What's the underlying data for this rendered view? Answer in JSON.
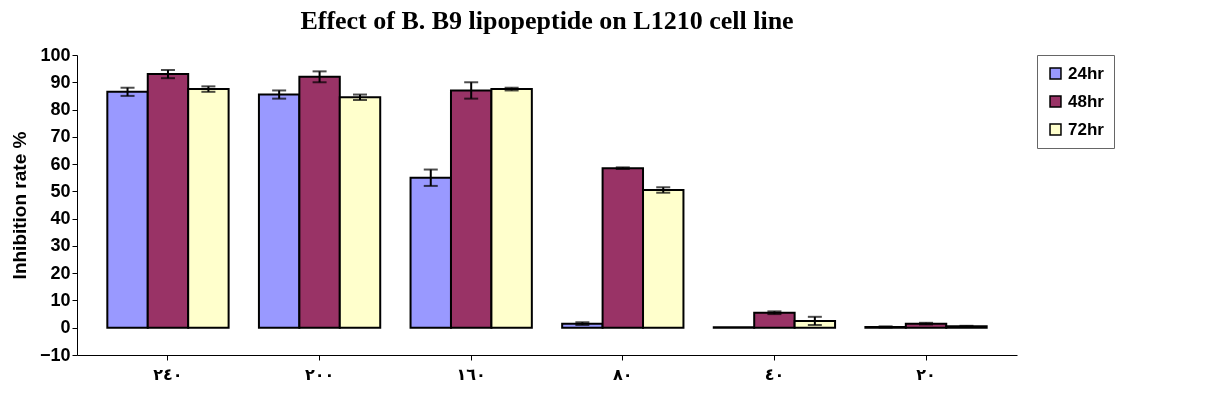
{
  "chart_data": {
    "type": "bar",
    "title": "Effect of B. B9 lipopeptide on L1210 cell line",
    "ylabel": "Inhibition rate %",
    "categories": [
      "٢٤٠",
      "٢٠٠",
      "١٦٠",
      "٨٠",
      "٤٠",
      "٢٠"
    ],
    "series": [
      {
        "name": "24hr",
        "color": "#9999ff",
        "values": [
          86.5,
          85.5,
          55,
          1.5,
          0.2,
          0.3
        ],
        "errors": [
          1.5,
          1.5,
          3,
          0.5,
          null,
          0.2
        ]
      },
      {
        "name": "48hr",
        "color": "#993366",
        "values": [
          93,
          92,
          87,
          58.5,
          5.5,
          1.5
        ],
        "errors": [
          1.5,
          2,
          3,
          0.3,
          0.5,
          0.3
        ]
      },
      {
        "name": "72hr",
        "color": "#ffffcc",
        "values": [
          87.5,
          84.5,
          87.5,
          50.5,
          2.5,
          0.5
        ],
        "errors": [
          1,
          1,
          0.5,
          1,
          1.5,
          0.2
        ]
      }
    ],
    "ylim": [
      -10,
      100
    ],
    "yticks": [
      -10,
      0,
      10,
      20,
      30,
      40,
      50,
      60,
      70,
      80,
      90,
      100
    ],
    "grid": false,
    "legend": "right"
  }
}
